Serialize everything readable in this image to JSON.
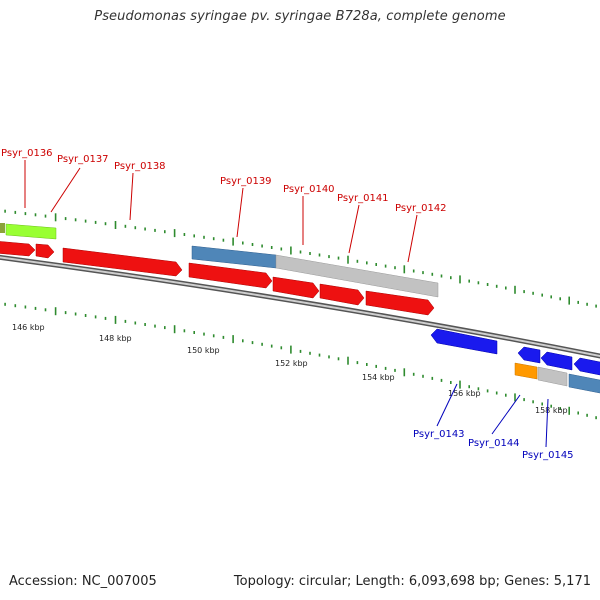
{
  "title": "Pseudomonas syringae pv. syringae B728a, complete genome",
  "footer": {
    "accession": "Accession: NC_007005",
    "topology": "Topology: circular; Length: 6,093,698 bp; Genes: 5,171"
  },
  "colors": {
    "backbone": "#8a8a8a",
    "tick": "#2e8b2e",
    "upper_label": "#cc0000",
    "lower_label": "#0000bb",
    "red_gene": "#ee1111",
    "blue_gene": "#1a1aee",
    "steel_gene": "#4f86b8",
    "gray_gene": "#bdbdbd",
    "green_gene": "#99ff33",
    "orange_gene": "#ff9900",
    "olive_gene": "#8aa23a"
  },
  "scale_labels": [
    "146 kbp",
    "148 kbp",
    "150 kbp",
    "152 kbp",
    "154 kbp",
    "156 kbp",
    "158 kbp"
  ],
  "upper_gene_labels": [
    "Psyr_0136",
    "Psyr_0137",
    "Psyr_0138",
    "Psyr_0139",
    "Psyr_0140",
    "Psyr_0141",
    "Psyr_0142"
  ],
  "lower_gene_labels": [
    "Psyr_0143",
    "Psyr_0144",
    "Psyr_0145"
  ]
}
